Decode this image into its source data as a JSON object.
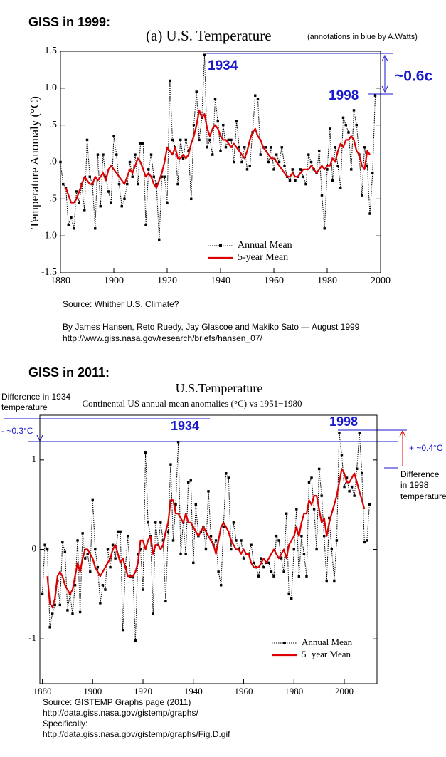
{
  "chart_data": [
    {
      "type": "line",
      "heading": "GISS in 1999:",
      "title": "(a)  U.S. Temperature",
      "note": "(annotations in blue by A.Watts)",
      "ylabel": "Temperature Anomaly (°C)",
      "annotations": [
        "1934",
        "1998",
        "~0.6c"
      ],
      "source": [
        "Source: Whither U.S. Climate?",
        "By James Hansen, Reto Ruedy, Jay Glascoe and Makiko Sato — August 1999",
        "http://www.giss.nasa.gov/research/briefs/hansen_07/"
      ],
      "xlim": [
        1880,
        2000
      ],
      "xticks": [
        1880,
        1900,
        1920,
        1940,
        1960,
        1980,
        2000
      ],
      "ylim": [
        -1.5,
        1.5
      ],
      "yticks": [
        -1.5,
        {
          "value": -1,
          "label": "-1.0"
        },
        {
          "value": -0.5,
          "label": "-.5"
        },
        {
          "value": 0,
          "label": ".0"
        },
        {
          "value": 0.5,
          "label": ".5"
        },
        {
          "value": 1,
          "label": "1.0"
        },
        1.5
      ],
      "legend": "lower right",
      "x": [
        1880,
        1881,
        1882,
        1883,
        1884,
        1885,
        1886,
        1887,
        1888,
        1889,
        1890,
        1891,
        1892,
        1893,
        1894,
        1895,
        1896,
        1897,
        1898,
        1899,
        1900,
        1901,
        1902,
        1903,
        1904,
        1905,
        1906,
        1907,
        1908,
        1909,
        1910,
        1911,
        1912,
        1913,
        1914,
        1915,
        1916,
        1917,
        1918,
        1919,
        1920,
        1921,
        1922,
        1923,
        1924,
        1925,
        1926,
        1927,
        1928,
        1929,
        1930,
        1931,
        1932,
        1933,
        1934,
        1935,
        1936,
        1937,
        1938,
        1939,
        1940,
        1941,
        1942,
        1943,
        1944,
        1945,
        1946,
        1947,
        1948,
        1949,
        1950,
        1951,
        1952,
        1953,
        1954,
        1955,
        1956,
        1957,
        1958,
        1959,
        1960,
        1961,
        1962,
        1963,
        1964,
        1965,
        1966,
        1967,
        1968,
        1969,
        1970,
        1971,
        1972,
        1973,
        1974,
        1975,
        1976,
        1977,
        1978,
        1979,
        1980,
        1981,
        1982,
        1983,
        1984,
        1985,
        1986,
        1987,
        1988,
        1989,
        1990,
        1991,
        1992,
        1993,
        1994,
        1995,
        1996,
        1997,
        1998
      ],
      "series": [
        {
          "name": "Annual Mean",
          "color": "#000000",
          "line_style": "dotted",
          "marker": "square",
          "values": [
            0.0,
            -0.3,
            -0.35,
            -0.85,
            -0.75,
            -0.9,
            -0.4,
            -0.55,
            -0.3,
            -0.65,
            0.3,
            -0.2,
            -0.3,
            -0.9,
            0.1,
            -0.6,
            0.1,
            -0.2,
            -0.4,
            -0.55,
            0.35,
            0.1,
            -0.3,
            -0.6,
            -0.5,
            -0.3,
            0.0,
            -0.2,
            0.1,
            -0.3,
            0.25,
            0.25,
            -0.85,
            -0.1,
            0.1,
            -0.2,
            -0.3,
            -1.05,
            -0.2,
            -0.2,
            -0.55,
            1.1,
            0.3,
            0.2,
            -0.3,
            0.3,
            0.05,
            0.3,
            0.15,
            -0.5,
            0.5,
            0.95,
            0.3,
            0.6,
            1.45,
            0.2,
            0.3,
            0.1,
            0.85,
            0.55,
            0.15,
            0.5,
            0.2,
            0.3,
            0.3,
            0.0,
            0.55,
            0.2,
            0.0,
            0.2,
            -0.1,
            -0.05,
            0.4,
            0.9,
            0.85,
            0.1,
            0.2,
            0.2,
            0.0,
            0.2,
            -0.1,
            0.1,
            0.0,
            0.2,
            -0.05,
            -0.2,
            -0.25,
            -0.1,
            -0.25,
            -0.2,
            -0.1,
            -0.2,
            -0.3,
            0.1,
            0.0,
            -0.1,
            -0.15,
            0.15,
            -0.45,
            -0.9,
            -0.1,
            0.45,
            -0.25,
            0.2,
            -0.05,
            -0.35,
            0.6,
            0.5,
            0.4,
            -0.1,
            0.7,
            0.5,
            0.1,
            -0.45,
            0.2,
            -0.05,
            -0.7,
            -0.15,
            0.9
          ]
        },
        {
          "name": "5-year Mean",
          "color": "#dd0000",
          "line_style": "solid",
          "values": [
            null,
            null,
            -0.35,
            -0.45,
            -0.55,
            -0.55,
            -0.5,
            -0.4,
            -0.3,
            -0.2,
            -0.25,
            -0.3,
            -0.3,
            -0.2,
            -0.25,
            -0.2,
            -0.15,
            -0.25,
            -0.1,
            -0.05,
            -0.1,
            -0.15,
            -0.2,
            -0.25,
            -0.3,
            -0.2,
            -0.1,
            -0.15,
            -0.05,
            0.05,
            0.0,
            -0.1,
            -0.2,
            -0.15,
            -0.2,
            -0.3,
            -0.35,
            -0.25,
            -0.15,
            0.0,
            0.2,
            0.15,
            0.1,
            0.2,
            0.05,
            0.05,
            0.1,
            0.05,
            0.1,
            0.25,
            0.35,
            0.5,
            0.7,
            0.6,
            0.65,
            0.45,
            0.35,
            0.45,
            0.5,
            0.45,
            0.35,
            0.3,
            0.3,
            0.25,
            0.2,
            0.25,
            0.2,
            0.15,
            0.1,
            0.05,
            0.15,
            0.3,
            0.4,
            0.45,
            0.35,
            0.3,
            0.2,
            0.15,
            0.1,
            0.05,
            0.05,
            0.0,
            -0.05,
            -0.1,
            -0.15,
            -0.2,
            -0.2,
            -0.15,
            -0.2,
            -0.2,
            -0.15,
            -0.1,
            -0.1,
            -0.1,
            -0.05,
            -0.1,
            -0.15,
            -0.1,
            -0.05,
            -0.1,
            -0.05,
            -0.05,
            0.05,
            0.0,
            0.15,
            0.25,
            0.2,
            0.3,
            0.3,
            0.35,
            0.3,
            0.15,
            0.1,
            -0.05,
            -0.1,
            0.15,
            0.1,
            null,
            null
          ]
        }
      ]
    },
    {
      "type": "line",
      "heading": "GISS in 2011:",
      "title": "U.S.Temperature",
      "subtitle": "Continental US annual mean anomalies (°C) vs 1951−1980",
      "annotations": [
        "Difference in 1934",
        "temperature",
        "- ~0.3°C",
        "1934",
        "1998",
        "+ ~0.4°C",
        "Difference",
        "in 1998",
        "temperature"
      ],
      "source": [
        "Source: GISTEMP Graphs page (2011)",
        "http://data.giss.nasa.gov/gistemp/graphs/",
        "Specifically:",
        "http://data.giss.nasa.gov/gistemp/graphs/Fig.D.gif"
      ],
      "xlim": [
        1879,
        2013
      ],
      "xticks": [
        1880,
        1900,
        1920,
        1940,
        1960,
        1980,
        2000
      ],
      "ylim": [
        -1.5,
        1.5
      ],
      "yticks": [
        -1,
        0,
        1
      ],
      "legend": "lower right",
      "x": [
        1880,
        1881,
        1882,
        1883,
        1884,
        1885,
        1886,
        1887,
        1888,
        1889,
        1890,
        1891,
        1892,
        1893,
        1894,
        1895,
        1896,
        1897,
        1898,
        1899,
        1900,
        1901,
        1902,
        1903,
        1904,
        1905,
        1906,
        1907,
        1908,
        1909,
        1910,
        1911,
        1912,
        1913,
        1914,
        1915,
        1916,
        1917,
        1918,
        1919,
        1920,
        1921,
        1922,
        1923,
        1924,
        1925,
        1926,
        1927,
        1928,
        1929,
        1930,
        1931,
        1932,
        1933,
        1934,
        1935,
        1936,
        1937,
        1938,
        1939,
        1940,
        1941,
        1942,
        1943,
        1944,
        1945,
        1946,
        1947,
        1948,
        1949,
        1950,
        1951,
        1952,
        1953,
        1954,
        1955,
        1956,
        1957,
        1958,
        1959,
        1960,
        1961,
        1962,
        1963,
        1964,
        1965,
        1966,
        1967,
        1968,
        1969,
        1970,
        1971,
        1972,
        1973,
        1974,
        1975,
        1976,
        1977,
        1978,
        1979,
        1980,
        1981,
        1982,
        1983,
        1984,
        1985,
        1986,
        1987,
        1988,
        1989,
        1990,
        1991,
        1992,
        1993,
        1994,
        1995,
        1996,
        1997,
        1998,
        1999,
        2000,
        2001,
        2002,
        2003,
        2004,
        2005,
        2006,
        2007,
        2008,
        2009,
        2010
      ],
      "series": [
        {
          "name": "Annual Mean",
          "color": "#000000",
          "line_style": "dotted",
          "marker": "square",
          "values": [
            -0.5,
            0.05,
            0.0,
            -0.87,
            -0.72,
            -0.62,
            -0.35,
            -0.62,
            0.08,
            -0.03,
            -0.68,
            -0.5,
            -0.72,
            -0.4,
            0.1,
            -0.7,
            0.18,
            -0.1,
            -0.05,
            -0.25,
            0.55,
            0.0,
            -0.2,
            -0.6,
            -0.4,
            -0.45,
            0.0,
            -0.2,
            0.05,
            -0.1,
            0.2,
            0.2,
            -0.9,
            -0.2,
            0.15,
            -0.3,
            -0.3,
            -1.02,
            -0.05,
            0.0,
            -0.45,
            1.08,
            0.3,
            0.15,
            -0.72,
            0.3,
            0.05,
            0.3,
            0.1,
            -0.58,
            0.2,
            0.95,
            0.1,
            0.5,
            1.2,
            -0.05,
            0.3,
            -0.05,
            0.75,
            0.77,
            -0.15,
            0.5,
            0.15,
            0.2,
            0.25,
            0.0,
            0.65,
            0.15,
            0.05,
            0.1,
            -0.25,
            -0.4,
            0.25,
            0.85,
            0.8,
            0.0,
            0.3,
            0.1,
            0.0,
            0.1,
            -0.1,
            -0.05,
            -0.05,
            0.05,
            -0.15,
            -0.2,
            -0.3,
            -0.1,
            -0.2,
            -0.15,
            -0.15,
            -0.25,
            -0.3,
            0.15,
            0.1,
            -0.1,
            -0.25,
            0.4,
            -0.5,
            -0.55,
            0.0,
            0.45,
            -0.3,
            0.15,
            -0.05,
            -0.3,
            0.75,
            0.8,
            0.45,
            0.0,
            0.9,
            0.6,
            0.15,
            -0.35,
            0.35,
            0.0,
            -0.35,
            0.1,
            1.3,
            1.05,
            0.7,
            0.8,
            0.65,
            0.7,
            0.6,
            0.9,
            1.3,
            0.85,
            0.08,
            0.1,
            0.5
          ]
        },
        {
          "name": "5−year Mean",
          "color": "#dd0000",
          "line_style": "solid",
          "values": [
            null,
            null,
            -0.3,
            -0.6,
            -0.65,
            -0.55,
            -0.3,
            -0.25,
            -0.3,
            -0.4,
            -0.45,
            -0.5,
            -0.45,
            -0.3,
            -0.15,
            -0.25,
            -0.1,
            0.0,
            0.0,
            -0.05,
            -0.1,
            -0.2,
            -0.25,
            -0.3,
            -0.25,
            -0.2,
            -0.15,
            -0.1,
            0.0,
            0.05,
            -0.05,
            -0.15,
            -0.1,
            -0.2,
            -0.3,
            -0.3,
            -0.3,
            -0.25,
            -0.15,
            0.1,
            0.1,
            0.0,
            0.1,
            0.15,
            -0.05,
            0.05,
            0.05,
            0.0,
            0.05,
            0.2,
            0.3,
            0.55,
            0.55,
            0.4,
            0.4,
            0.35,
            0.3,
            0.4,
            0.3,
            0.3,
            0.25,
            0.2,
            0.15,
            0.2,
            0.25,
            0.2,
            0.15,
            0.1,
            0.05,
            -0.05,
            0.1,
            0.25,
            0.3,
            0.25,
            0.2,
            0.1,
            0.05,
            0.0,
            0.0,
            -0.05,
            0.0,
            -0.05,
            -0.05,
            -0.15,
            -0.2,
            -0.2,
            -0.2,
            -0.15,
            -0.1,
            -0.15,
            -0.1,
            -0.05,
            0.0,
            -0.05,
            -0.1,
            -0.05,
            0.0,
            -0.1,
            0.05,
            0.1,
            0.15,
            0.25,
            0.15,
            0.3,
            0.4,
            0.4,
            0.55,
            0.5,
            0.6,
            0.6,
            0.45,
            0.3,
            0.35,
            0.15,
            0.3,
            0.4,
            0.5,
            0.6,
            0.75,
            0.9,
            0.85,
            0.75,
            0.75,
            0.8,
            0.85,
            0.75,
            0.65,
            0.55,
            0.45,
            null,
            null
          ]
        }
      ]
    }
  ]
}
